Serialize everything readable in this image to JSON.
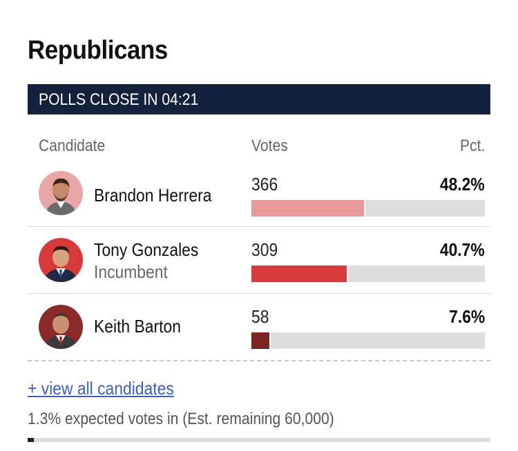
{
  "race": {
    "title": "Republicans",
    "status": "POLLS CLOSE IN 04:21"
  },
  "table": {
    "headers": {
      "candidate": "Candidate",
      "votes": "Votes",
      "pct": "Pct."
    },
    "rows": [
      {
        "name": "Brandon Herrera",
        "tag": "",
        "votes": "366",
        "pct": "48.2%",
        "share": 48.2,
        "color": "#e89a9a",
        "icon": "candidate-photo-icon"
      },
      {
        "name": "Tony Gonzales",
        "tag": "Incumbent",
        "votes": "309",
        "pct": "40.7%",
        "share": 40.7,
        "color": "#d63a3a",
        "icon": "candidate-photo-icon"
      },
      {
        "name": "Keith Barton",
        "tag": "",
        "votes": "58",
        "pct": "7.6%",
        "share": 7.6,
        "color": "#7a2424",
        "icon": "candidate-photo-icon"
      }
    ]
  },
  "footer": {
    "view_all": "+ view all candidates",
    "expected": "1.3% expected votes in (Est. remaining 60,000)",
    "expected_pct": 1.3,
    "accent": "#3b5fc0"
  }
}
